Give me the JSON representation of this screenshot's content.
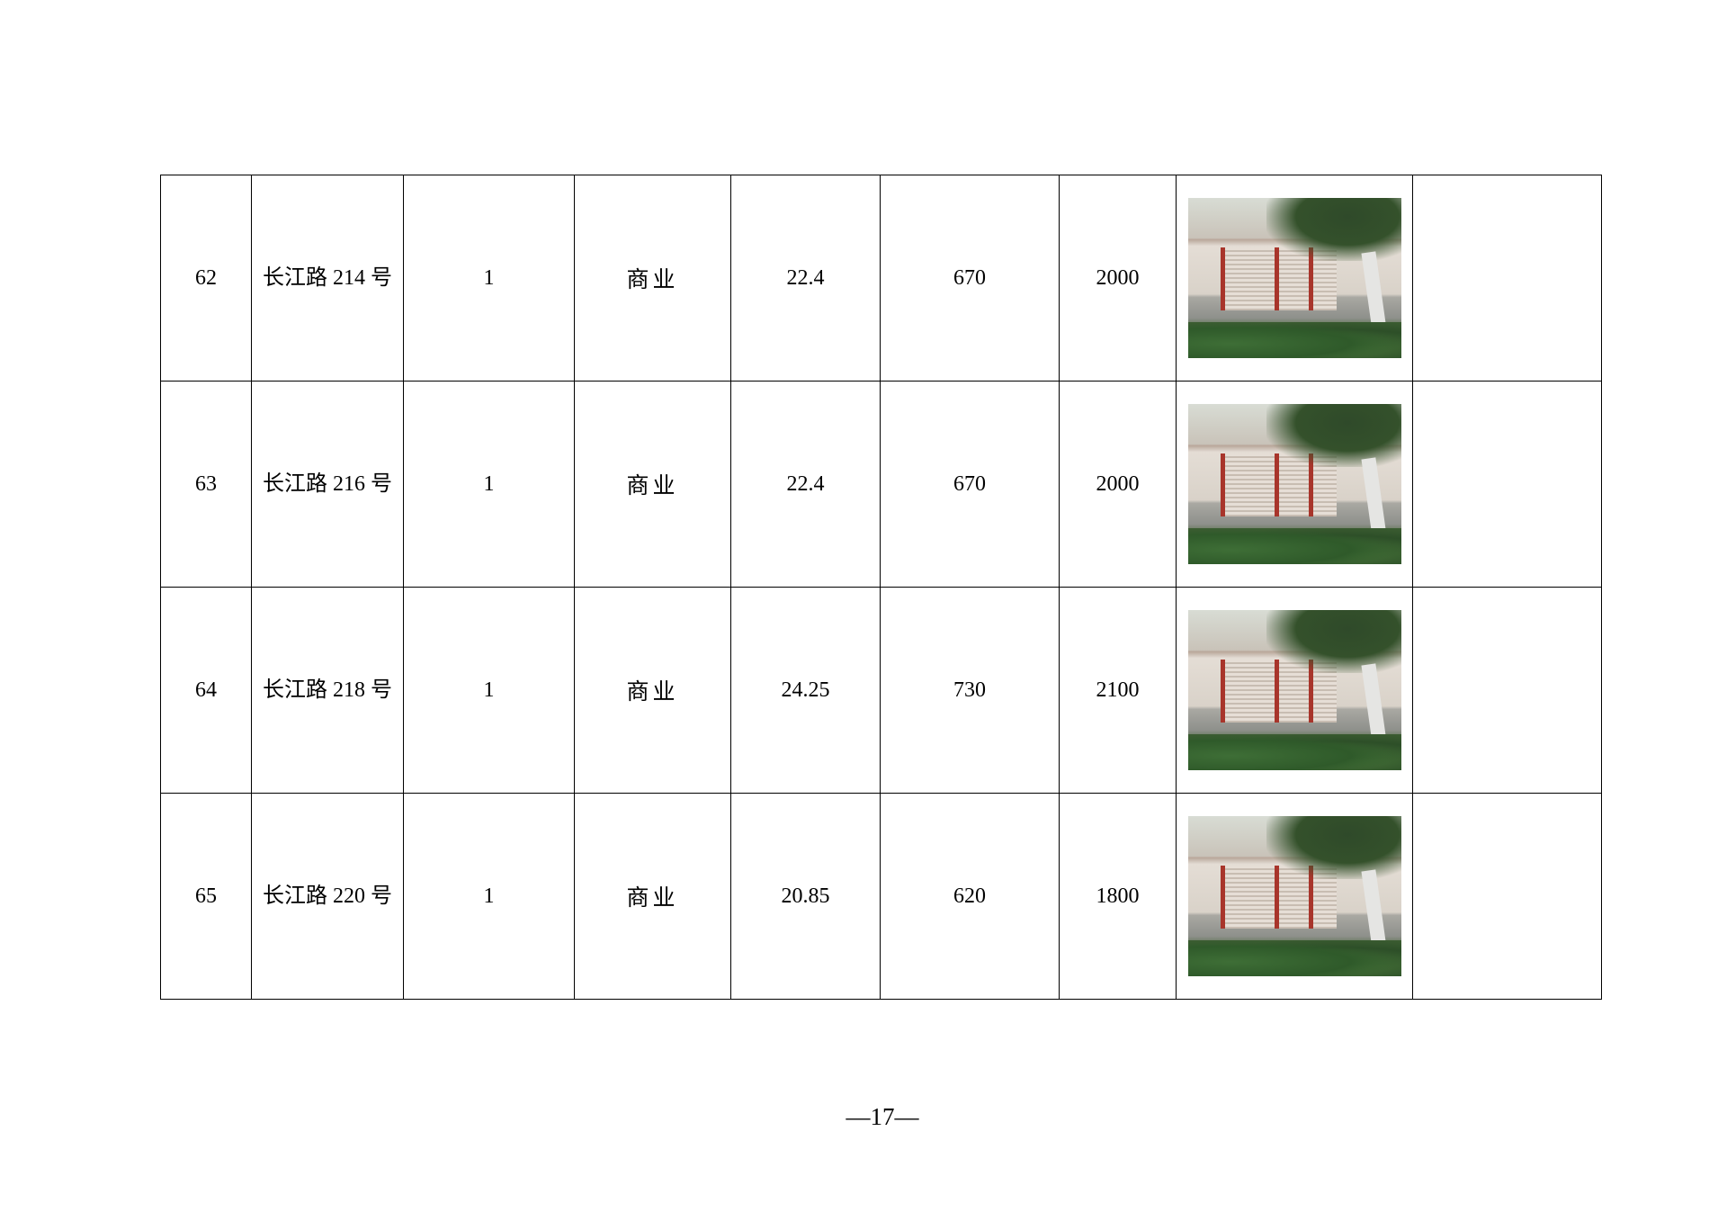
{
  "rows": [
    {
      "no": "62",
      "address": "长江路 214 号",
      "count": "1",
      "use": "商业",
      "area": "22.4",
      "value1": "670",
      "value2": "2000",
      "photo": "storefront-photo",
      "remark": ""
    },
    {
      "no": "63",
      "address": "长江路 216 号",
      "count": "1",
      "use": "商业",
      "area": "22.4",
      "value1": "670",
      "value2": "2000",
      "photo": "storefront-photo",
      "remark": ""
    },
    {
      "no": "64",
      "address": "长江路 218 号",
      "count": "1",
      "use": "商业",
      "area": "24.25",
      "value1": "730",
      "value2": "2100",
      "photo": "storefront-photo",
      "remark": ""
    },
    {
      "no": "65",
      "address": "长江路 220 号",
      "count": "1",
      "use": "商业",
      "area": "20.85",
      "value1": "620",
      "value2": "1800",
      "photo": "storefront-photo",
      "remark": ""
    }
  ],
  "page_number": "—17—"
}
